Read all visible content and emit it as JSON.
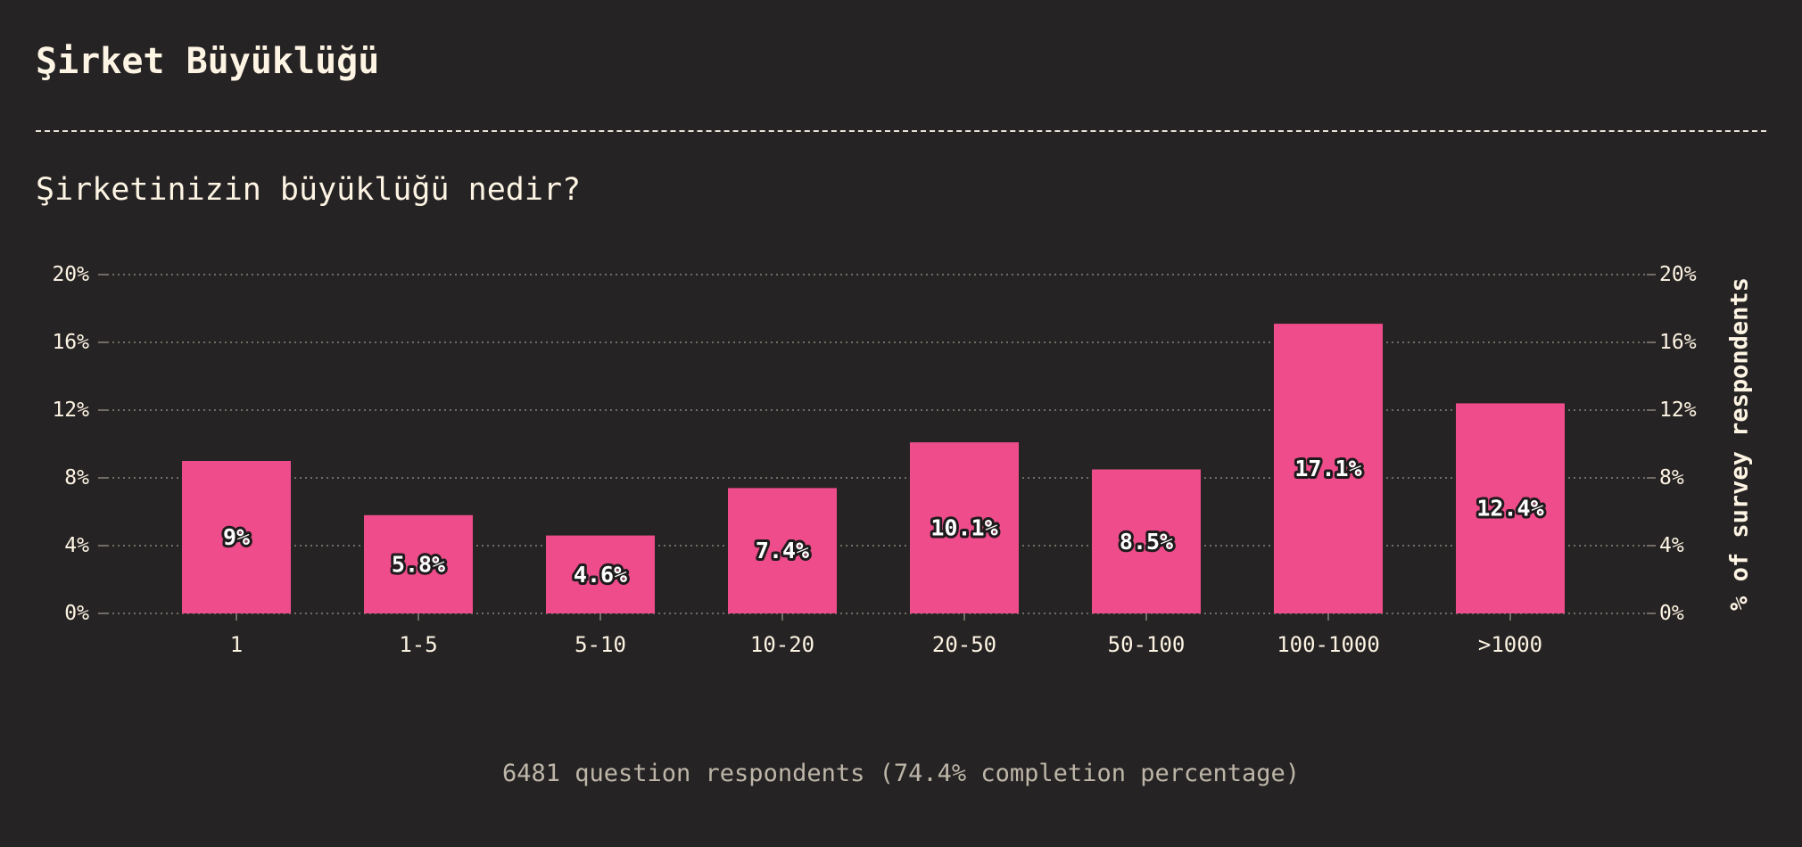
{
  "header": {
    "title": "Şirket Büyüklüğü",
    "question": "Şirketinizin büyüklüğü nedir?"
  },
  "footer": {
    "note": "6481 question respondents (74.4% completion percentage)"
  },
  "colors": {
    "background": "#262324",
    "bar": "#ee4c8b",
    "text": "#fdf4e3",
    "muted": "#bdb6a8",
    "grid": "#8a847b"
  },
  "chart_data": {
    "type": "bar",
    "categories": [
      "1",
      "1-5",
      "5-10",
      "10-20",
      "20-50",
      "50-100",
      "100-1000",
      ">1000"
    ],
    "values": [
      9,
      5.8,
      4.6,
      7.4,
      10.1,
      8.5,
      17.1,
      12.4
    ],
    "value_labels": [
      "9%",
      "5.8%",
      "4.6%",
      "7.4%",
      "10.1%",
      "8.5%",
      "17.1%",
      "12.4%"
    ],
    "y_ticks": [
      0,
      4,
      8,
      12,
      16,
      20
    ],
    "y_tick_labels": [
      "0%",
      "4%",
      "8%",
      "12%",
      "16%",
      "20%"
    ],
    "ylim": [
      0,
      20
    ],
    "ylabel": "% of survey respondents",
    "xlabel": "",
    "grid": true
  }
}
